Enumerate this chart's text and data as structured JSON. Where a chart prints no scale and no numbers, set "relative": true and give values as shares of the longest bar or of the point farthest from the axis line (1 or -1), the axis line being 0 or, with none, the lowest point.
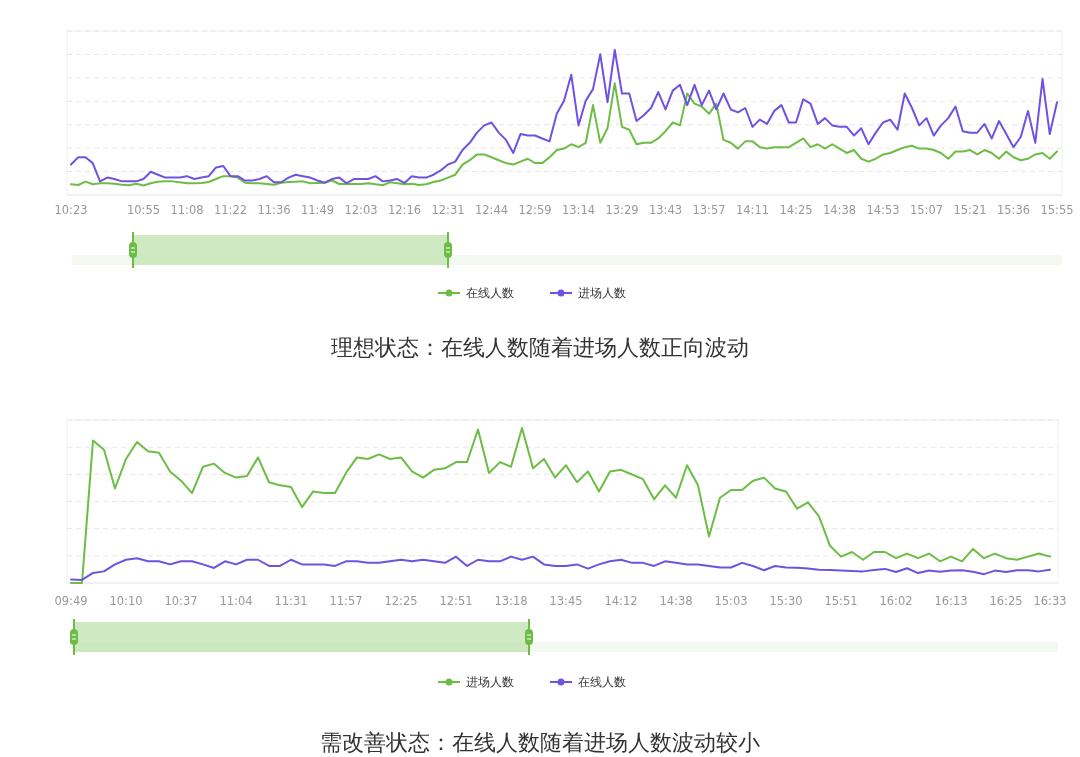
{
  "chart_data": [
    {
      "type": "line",
      "title": "理想状态：在线人数随着进场人数正向波动",
      "relative": true,
      "grid": "y",
      "legend": "bottom",
      "categories": [
        "10:23",
        null,
        null,
        null,
        null,
        null,
        null,
        null,
        null,
        null,
        "10:55",
        null,
        null,
        null,
        null,
        null,
        "11:08",
        null,
        null,
        null,
        null,
        null,
        "11:22",
        null,
        null,
        null,
        null,
        null,
        "11:36",
        null,
        null,
        null,
        null,
        null,
        "11:49",
        null,
        null,
        null,
        null,
        null,
        "12:03",
        null,
        null,
        null,
        null,
        null,
        "12:16",
        null,
        null,
        null,
        null,
        null,
        "12:31",
        null,
        null,
        null,
        null,
        null,
        "12:44",
        null,
        null,
        null,
        null,
        null,
        "12:59",
        null,
        null,
        null,
        null,
        null,
        "13:14",
        null,
        null,
        null,
        null,
        null,
        "13:29",
        null,
        null,
        null,
        null,
        null,
        "13:43",
        null,
        null,
        null,
        null,
        null,
        "13:57",
        null,
        null,
        null,
        null,
        null,
        "14:11",
        null,
        null,
        null,
        null,
        null,
        "14:25",
        null,
        null,
        null,
        null,
        null,
        "14:38",
        null,
        null,
        null,
        null,
        null,
        "14:53",
        null,
        null,
        null,
        null,
        null,
        "15:07",
        null,
        null,
        null,
        null,
        null,
        "15:21",
        null,
        null,
        null,
        null,
        null,
        "15:36",
        null,
        null,
        null,
        null,
        null,
        "15:55"
      ],
      "series": [
        {
          "name": "在线人数",
          "color": "#6dbd45",
          "values": [
            0.074,
            0.069,
            0.092,
            0.074,
            0.081,
            0.081,
            0.078,
            0.071,
            0.067,
            0.078,
            0.065,
            0.081,
            0.092,
            0.094,
            0.094,
            0.088,
            0.081,
            0.081,
            0.083,
            0.09,
            0.11,
            0.13,
            0.13,
            0.12,
            0.085,
            0.081,
            0.081,
            0.076,
            0.071,
            0.085,
            0.09,
            0.092,
            0.094,
            0.081,
            0.083,
            0.085,
            0.1,
            0.076,
            0.078,
            0.076,
            0.076,
            0.081,
            0.074,
            0.067,
            0.088,
            0.081,
            0.074,
            0.078,
            0.069,
            0.074,
            0.09,
            0.1,
            0.12,
            0.14,
            0.21,
            0.24,
            0.28,
            0.28,
            0.26,
            0.24,
            0.22,
            0.21,
            0.23,
            0.25,
            0.22,
            0.22,
            0.26,
            0.31,
            0.32,
            0.35,
            0.33,
            0.36,
            0.62,
            0.36,
            0.46,
            0.77,
            0.47,
            0.45,
            0.35,
            0.36,
            0.36,
            0.39,
            0.44,
            0.5,
            0.48,
            0.7,
            0.63,
            0.61,
            0.56,
            0.63,
            0.38,
            0.36,
            0.32,
            0.37,
            0.37,
            0.33,
            0.32,
            0.33,
            0.33,
            0.33,
            0.36,
            0.39,
            0.33,
            0.35,
            0.32,
            0.35,
            0.32,
            0.29,
            0.31,
            0.25,
            0.23,
            0.25,
            0.28,
            0.29,
            0.31,
            0.33,
            0.34,
            0.32,
            0.32,
            0.31,
            0.29,
            0.25,
            0.3,
            0.3,
            0.31,
            0.28,
            0.31,
            0.29,
            0.25,
            0.3,
            0.26,
            0.24,
            0.25,
            0.28,
            0.29,
            0.25,
            0.3
          ]
        },
        {
          "name": "进场人数",
          "color": "#7052e0",
          "values": [
            0.21,
            0.26,
            0.26,
            0.22,
            0.094,
            0.12,
            0.11,
            0.094,
            0.094,
            0.094,
            0.11,
            0.16,
            0.14,
            0.12,
            0.12,
            0.12,
            0.13,
            0.11,
            0.12,
            0.13,
            0.19,
            0.2,
            0.13,
            0.13,
            0.1,
            0.1,
            0.11,
            0.13,
            0.088,
            0.088,
            0.12,
            0.14,
            0.13,
            0.12,
            0.1,
            0.085,
            0.11,
            0.12,
            0.081,
            0.11,
            0.11,
            0.11,
            0.13,
            0.094,
            0.1,
            0.11,
            0.083,
            0.13,
            0.12,
            0.12,
            0.14,
            0.17,
            0.21,
            0.23,
            0.31,
            0.36,
            0.43,
            0.48,
            0.5,
            0.43,
            0.38,
            0.29,
            0.42,
            0.41,
            0.41,
            0.39,
            0.37,
            0.56,
            0.65,
            0.83,
            0.48,
            0.65,
            0.73,
            0.97,
            0.64,
            1,
            0.7,
            0.7,
            0.51,
            0.55,
            0.6,
            0.71,
            0.59,
            0.72,
            0.76,
            0.62,
            0.76,
            0.62,
            0.72,
            0.59,
            0.7,
            0.59,
            0.57,
            0.6,
            0.47,
            0.52,
            0.49,
            0.58,
            0.62,
            0.5,
            0.5,
            0.66,
            0.63,
            0.49,
            0.53,
            0.48,
            0.47,
            0.47,
            0.41,
            0.46,
            0.35,
            0.43,
            0.5,
            0.52,
            0.45,
            0.7,
            0.6,
            0.48,
            0.53,
            0.41,
            0.48,
            0.53,
            0.61,
            0.44,
            0.43,
            0.43,
            0.49,
            0.39,
            0.51,
            0.42,
            0.33,
            0.4,
            0.58,
            0.36,
            0.8,
            0.42,
            0.64
          ]
        }
      ]
    },
    {
      "type": "line",
      "title": "需改善状态：在线人数随着进场人数波动较小",
      "relative": true,
      "grid": "y",
      "legend": "bottom",
      "categories": [
        "09:49",
        null,
        null,
        null,
        null,
        "10:10",
        null,
        null,
        null,
        null,
        "10:37",
        null,
        null,
        null,
        null,
        "11:04",
        null,
        null,
        null,
        null,
        "11:31",
        null,
        null,
        null,
        null,
        "11:57",
        null,
        null,
        null,
        null,
        "12:25",
        null,
        null,
        null,
        null,
        "12:51",
        null,
        null,
        null,
        null,
        "13:18",
        null,
        null,
        null,
        null,
        "13:45",
        null,
        null,
        null,
        null,
        "14:12",
        null,
        null,
        null,
        null,
        "14:38",
        null,
        null,
        null,
        null,
        "15:03",
        null,
        null,
        null,
        null,
        "15:30",
        null,
        null,
        null,
        null,
        "15:51",
        null,
        null,
        null,
        null,
        "16:02",
        null,
        null,
        null,
        null,
        "16:13",
        null,
        null,
        null,
        null,
        "16:25",
        null,
        null,
        null,
        "16:33"
      ],
      "series": [
        {
          "name": "进场人数",
          "color": "#6dbd45",
          "values": [
            0,
            0,
            0.92,
            0.86,
            0.61,
            0.8,
            0.91,
            0.85,
            0.84,
            0.72,
            0.66,
            0.58,
            0.75,
            0.77,
            0.71,
            0.68,
            0.69,
            0.81,
            0.65,
            0.63,
            0.62,
            0.49,
            0.59,
            0.58,
            0.58,
            0.71,
            0.81,
            0.8,
            0.83,
            0.8,
            0.81,
            0.72,
            0.68,
            0.73,
            0.74,
            0.78,
            0.78,
            0.99,
            0.71,
            0.78,
            0.75,
            1,
            0.74,
            0.8,
            0.68,
            0.76,
            0.65,
            0.72,
            0.59,
            0.72,
            0.73,
            0.7,
            0.67,
            0.54,
            0.63,
            0.55,
            0.76,
            0.63,
            0.3,
            0.55,
            0.6,
            0.6,
            0.66,
            0.68,
            0.61,
            0.59,
            0.48,
            0.52,
            0.43,
            0.24,
            0.17,
            0.2,
            0.15,
            0.2,
            0.2,
            0.16,
            0.19,
            0.16,
            0.19,
            0.14,
            0.17,
            0.14,
            0.22,
            0.16,
            0.19,
            0.16,
            0.15,
            0.17,
            0.19,
            0.17
          ]
        },
        {
          "name": "在线人数",
          "color": "#7052e0",
          "values": [
            0.022,
            0.02,
            0.065,
            0.075,
            0.12,
            0.15,
            0.16,
            0.14,
            0.14,
            0.12,
            0.14,
            0.14,
            0.12,
            0.097,
            0.14,
            0.12,
            0.15,
            0.15,
            0.11,
            0.11,
            0.15,
            0.12,
            0.12,
            0.12,
            0.11,
            0.14,
            0.14,
            0.13,
            0.13,
            0.14,
            0.15,
            0.14,
            0.15,
            0.14,
            0.13,
            0.17,
            0.11,
            0.15,
            0.14,
            0.14,
            0.17,
            0.15,
            0.17,
            0.12,
            0.11,
            0.11,
            0.12,
            0.093,
            0.12,
            0.14,
            0.15,
            0.13,
            0.13,
            0.11,
            0.14,
            0.13,
            0.12,
            0.12,
            0.11,
            0.1,
            0.1,
            0.13,
            0.11,
            0.082,
            0.11,
            0.1,
            0.098,
            0.093,
            0.086,
            0.084,
            0.08,
            0.077,
            0.075,
            0.084,
            0.091,
            0.071,
            0.095,
            0.064,
            0.08,
            0.073,
            0.08,
            0.082,
            0.073,
            0.057,
            0.08,
            0.071,
            0.082,
            0.082,
            0.075,
            0.086
          ]
        }
      ]
    }
  ]
}
